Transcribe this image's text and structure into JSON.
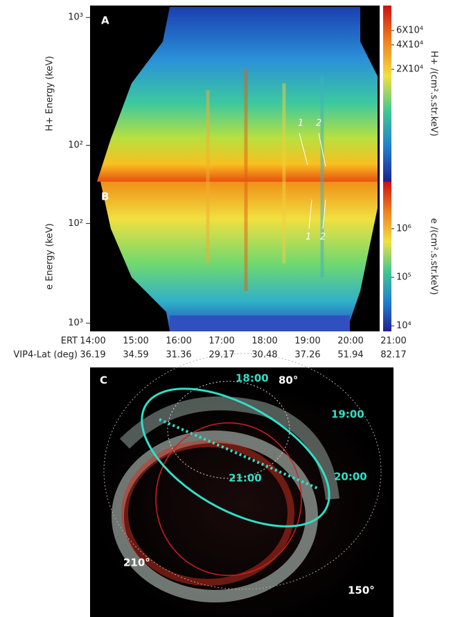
{
  "panel_a": {
    "label": "A",
    "y_label": "H+ Energy (keV)",
    "log": true,
    "ylim": [
      52,
      1240
    ],
    "yticks": [
      {
        "value": 1000,
        "label": "10³"
      },
      {
        "value": 100,
        "label": "10²"
      }
    ],
    "colorbar_label": "H+ /(cm².s.str.keV)",
    "colorbar_lim": [
      830,
      122000
    ],
    "colorbar_ticks": [
      {
        "value": 60000,
        "label": "6X10⁴"
      },
      {
        "value": 40000,
        "label": "4X10⁴"
      },
      {
        "value": 20000,
        "label": "2X10⁴"
      }
    ],
    "annotations": [
      "1",
      "2"
    ]
  },
  "panel_b": {
    "label": "B",
    "y_label": "e Energy (keV)",
    "log": true,
    "inverted": true,
    "ylim": [
      38,
      1210
    ],
    "yticks": [
      {
        "value": 100,
        "label": "10²"
      },
      {
        "value": 1000,
        "label": "10³"
      }
    ],
    "colorbar_label": "e /(cm².s.str.keV)",
    "colorbar_lim": [
      7700,
      9300000
    ],
    "colorbar_ticks": [
      {
        "value": 1000000,
        "label": "10⁶"
      },
      {
        "value": 100000,
        "label": "10⁵"
      },
      {
        "value": 10000,
        "label": "10⁴"
      }
    ],
    "annotations": [
      "1",
      "2"
    ]
  },
  "x_axis": {
    "rows": [
      {
        "name": "ERT",
        "values": [
          "14:00",
          "15:00",
          "16:00",
          "17:00",
          "18:00",
          "19:00",
          "20:00",
          "21:00"
        ]
      },
      {
        "name": "VIP4-Lat (deg)",
        "values": [
          "36.19",
          "34.59",
          "31.36",
          "29.17",
          "30.48",
          "37.26",
          "51.94",
          "82.17"
        ]
      }
    ]
  },
  "panel_c": {
    "label": "C",
    "times": [
      "18:00",
      "19:00",
      "20:00",
      "21:00"
    ],
    "angles": [
      "80°",
      "210°",
      "150°"
    ]
  }
}
